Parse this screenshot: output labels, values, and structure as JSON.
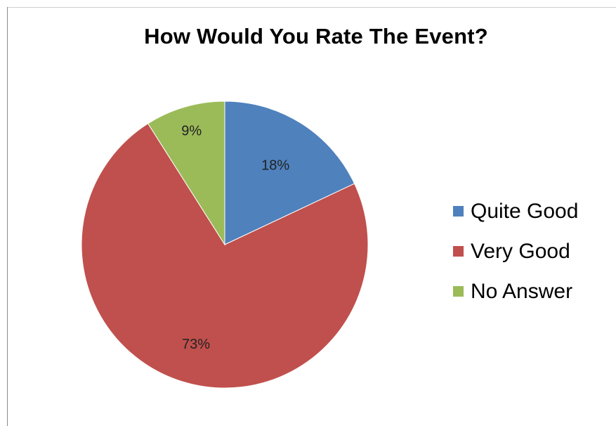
{
  "chart_data": {
    "type": "pie",
    "title": "How Would You Rate The Event?",
    "categories": [
      "Quite Good",
      "Very Good",
      "No Answer"
    ],
    "values": [
      18,
      73,
      9
    ],
    "data_labels": [
      "18%",
      "73%",
      "9%"
    ],
    "colors": [
      "#4f81bd",
      "#c0504d",
      "#9bbb59"
    ],
    "legend_position": "right",
    "start_angle": "top, clockwise"
  }
}
